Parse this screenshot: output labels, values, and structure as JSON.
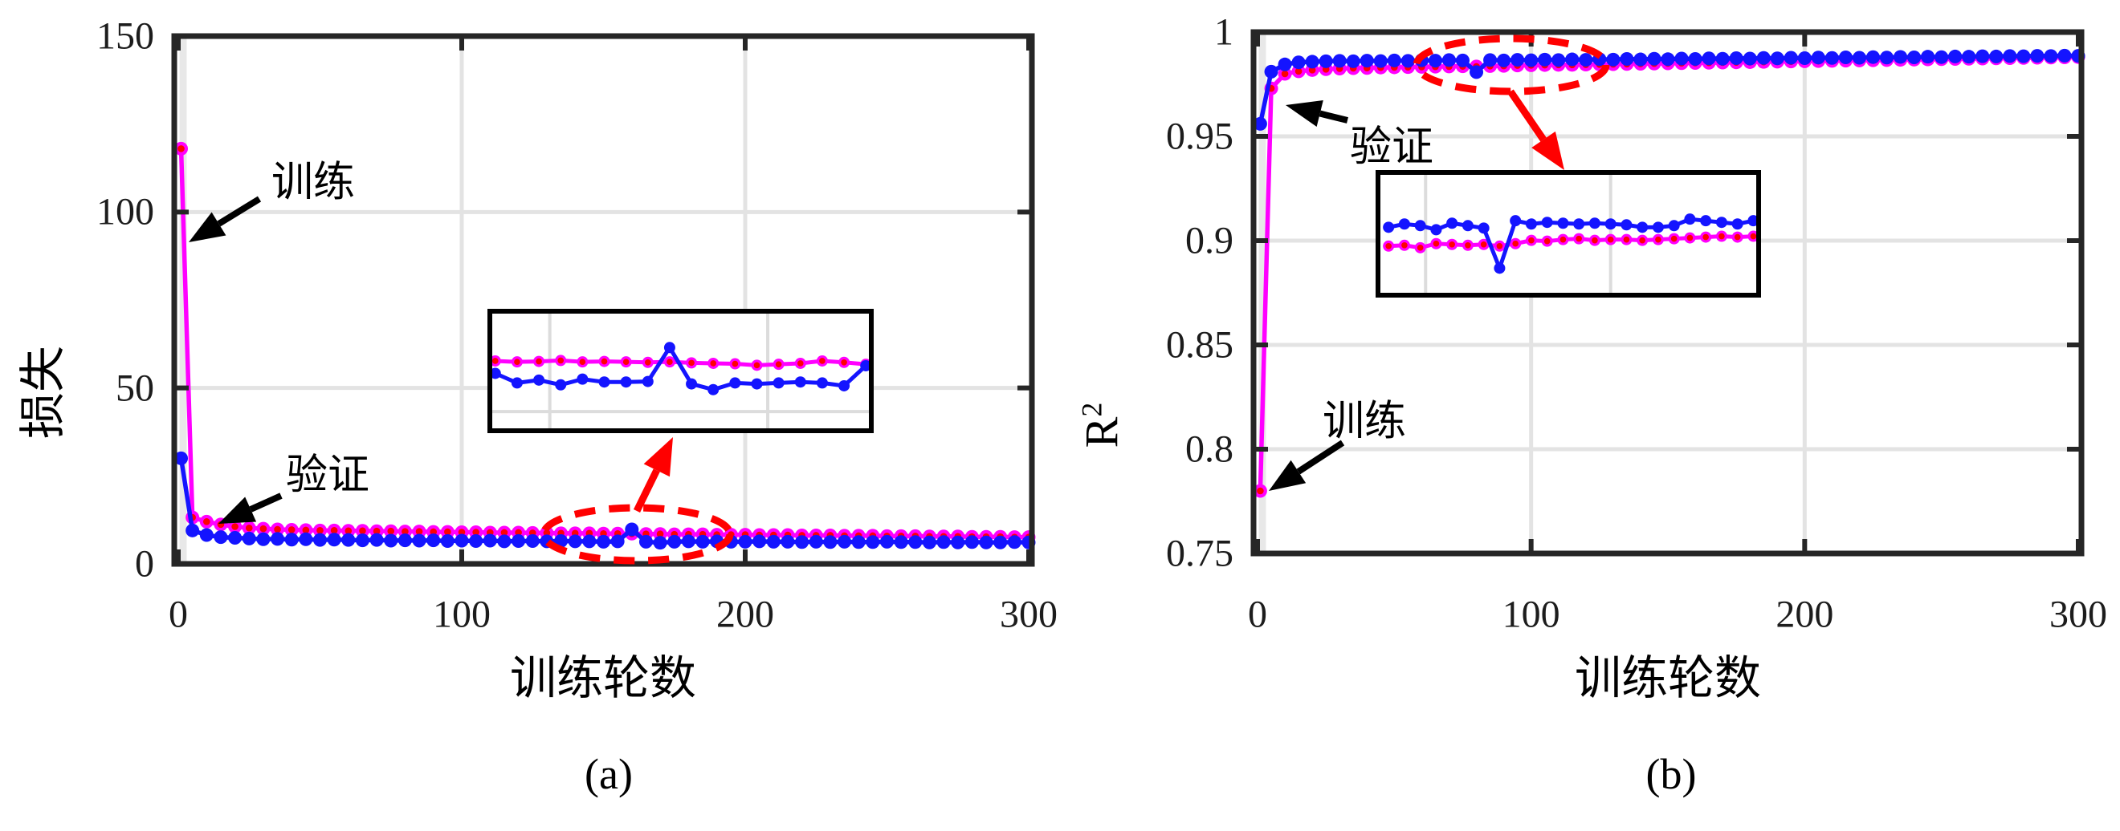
{
  "figure_background": "#FFFFFF",
  "colors": {
    "train_line": "#FF00FF",
    "train_marker_core": "#FF0000",
    "valid_line": "#1414FF",
    "grid": "#E3E3E3",
    "grid_zero_band": "#E8E8E8",
    "frame": "#262626",
    "annotation_red": "#FF0000",
    "annotation_black": "#000000",
    "tick_text": "#1C1C1C"
  },
  "chart_data": [
    {
      "type": "line",
      "id": "loss",
      "caption": "(a)",
      "xlabel": "训练轮数",
      "ylabel": "损失",
      "xlim": [
        0,
        300
      ],
      "ylim": [
        0,
        150
      ],
      "xticks": [
        0,
        100,
        200,
        300
      ],
      "yticks": [
        0,
        50,
        100,
        150
      ],
      "xtick_labels": [
        "0",
        "100",
        "200",
        "300"
      ],
      "ytick_labels": [
        "0",
        "50",
        "100",
        "150"
      ],
      "grid": "on",
      "legend_position": "none",
      "x": [
        1,
        5,
        10,
        15,
        20,
        25,
        30,
        35,
        40,
        45,
        50,
        55,
        60,
        65,
        70,
        75,
        80,
        85,
        90,
        95,
        100,
        105,
        110,
        115,
        120,
        125,
        130,
        135,
        140,
        145,
        150,
        155,
        160,
        165,
        170,
        175,
        180,
        185,
        190,
        195,
        200,
        205,
        210,
        215,
        220,
        225,
        230,
        235,
        240,
        245,
        250,
        255,
        260,
        265,
        270,
        275,
        280,
        285,
        290,
        295,
        300
      ],
      "series": [
        {
          "name": "训练",
          "key": "train",
          "values": [
            118,
            13.2,
            12.0,
            11.2,
            10.6,
            10.2,
            10.0,
            9.8,
            9.7,
            9.6,
            9.5,
            9.5,
            9.4,
            9.4,
            9.3,
            9.3,
            9.2,
            9.2,
            9.1,
            9.1,
            9.0,
            9.0,
            8.9,
            8.9,
            8.9,
            8.8,
            8.8,
            8.7,
            8.7,
            8.7,
            8.6,
            8.6,
            8.6,
            8.5,
            8.5,
            8.4,
            8.4,
            8.4,
            8.3,
            8.3,
            8.3,
            8.2,
            8.2,
            8.2,
            8.1,
            8.1,
            8.1,
            8.0,
            8.0,
            8.0,
            7.9,
            7.9,
            7.9,
            7.8,
            7.8,
            7.8,
            7.7,
            7.7,
            7.7,
            7.6,
            7.6
          ]
        },
        {
          "name": "验证",
          "key": "valid",
          "values": [
            30,
            9.5,
            8.2,
            7.6,
            7.4,
            7.2,
            7.0,
            7.1,
            6.9,
            7.0,
            6.8,
            6.9,
            6.8,
            6.7,
            6.8,
            6.6,
            6.7,
            6.6,
            6.7,
            6.5,
            6.6,
            6.5,
            6.6,
            6.4,
            6.5,
            6.5,
            6.4,
            6.5,
            6.4,
            6.4,
            6.3,
            6.4,
            9.8,
            6.3,
            6.0,
            6.3,
            6.4,
            6.3,
            6.4,
            6.3,
            6.3,
            6.4,
            6.3,
            6.3,
            6.2,
            6.3,
            6.2,
            6.3,
            6.2,
            6.2,
            6.3,
            6.2,
            6.2,
            6.1,
            6.2,
            6.1,
            6.2,
            6.1,
            6.1,
            6.2,
            6.1
          ]
        }
      ],
      "annotations": [
        {
          "text": "训练",
          "points_to": "train-series"
        },
        {
          "text": "验证",
          "points_to": "valid-series"
        }
      ],
      "zoom_inset": {
        "window_x": [
          129,
          199
        ],
        "window_y": [
          2,
          14.5
        ],
        "grid_x": [
          140,
          180
        ],
        "grid_y": [
          4
        ],
        "x": [
          130,
          134,
          138,
          142,
          146,
          150,
          154,
          158,
          162,
          166,
          170,
          174,
          178,
          182,
          186,
          190,
          194,
          198
        ],
        "train": [
          9.3,
          9.2,
          9.25,
          9.35,
          9.2,
          9.25,
          9.2,
          9.15,
          9.2,
          9.1,
          9.05,
          9.0,
          8.85,
          8.95,
          9.05,
          9.3,
          9.15,
          8.95
        ],
        "valid": [
          8.0,
          7.0,
          7.3,
          6.8,
          7.4,
          7.1,
          7.1,
          7.15,
          10.7,
          6.9,
          6.3,
          7.0,
          6.9,
          7.0,
          7.1,
          7.0,
          6.7,
          8.8
        ]
      }
    },
    {
      "type": "line",
      "id": "r2",
      "caption": "(b)",
      "xlabel": "训练轮数",
      "ylabel_base": "R",
      "ylabel_sup": "2",
      "xlim": [
        0,
        300
      ],
      "ylim": [
        0.75,
        1.0
      ],
      "xticks": [
        0,
        100,
        200,
        300
      ],
      "yticks": [
        0.75,
        0.8,
        0.85,
        0.9,
        0.95,
        1.0
      ],
      "xtick_labels": [
        "0",
        "100",
        "200",
        "300"
      ],
      "ytick_labels": [
        "0.75",
        "0.8",
        "0.85",
        "0.9",
        "0.95",
        "1"
      ],
      "grid": "on",
      "legend_position": "none",
      "x": [
        1,
        5,
        10,
        15,
        20,
        25,
        30,
        35,
        40,
        45,
        50,
        55,
        60,
        65,
        70,
        75,
        80,
        85,
        90,
        95,
        100,
        105,
        110,
        115,
        120,
        125,
        130,
        135,
        140,
        145,
        150,
        155,
        160,
        165,
        170,
        175,
        180,
        185,
        190,
        195,
        200,
        205,
        210,
        215,
        220,
        225,
        230,
        235,
        240,
        245,
        250,
        255,
        260,
        265,
        270,
        275,
        280,
        285,
        290,
        295,
        300
      ],
      "series": [
        {
          "name": "训练",
          "key": "train",
          "values": [
            0.78,
            0.973,
            0.98,
            0.9812,
            0.9818,
            0.9822,
            0.9825,
            0.9827,
            0.9828,
            0.983,
            0.9831,
            0.9832,
            0.9833,
            0.9834,
            0.9835,
            0.9836,
            0.9835,
            0.9837,
            0.9838,
            0.984,
            0.9841,
            0.9842,
            0.9843,
            0.9843,
            0.9844,
            0.9845,
            0.9846,
            0.9847,
            0.9848,
            0.9849,
            0.985,
            0.9851,
            0.9852,
            0.9853,
            0.9854,
            0.9855,
            0.9856,
            0.9857,
            0.9858,
            0.9859,
            0.986,
            0.9861,
            0.9862,
            0.9863,
            0.9864,
            0.9865,
            0.9866,
            0.9867,
            0.9868,
            0.9869,
            0.987,
            0.9871,
            0.9872,
            0.9873,
            0.9874,
            0.9875,
            0.9876,
            0.9877,
            0.9878,
            0.9879,
            0.988
          ]
        },
        {
          "name": "验证",
          "key": "valid",
          "values": [
            0.956,
            0.981,
            0.9845,
            0.9855,
            0.9858,
            0.986,
            0.9862,
            0.986,
            0.9863,
            0.9861,
            0.9864,
            0.9862,
            0.9865,
            0.9863,
            0.9866,
            0.9864,
            0.9808,
            0.9866,
            0.9864,
            0.9867,
            0.9865,
            0.9868,
            0.9866,
            0.9869,
            0.9867,
            0.987,
            0.9868,
            0.9871,
            0.9869,
            0.9872,
            0.987,
            0.9873,
            0.9871,
            0.9874,
            0.9872,
            0.9875,
            0.9873,
            0.9876,
            0.9874,
            0.9877,
            0.9875,
            0.9878,
            0.9876,
            0.9879,
            0.9877,
            0.988,
            0.9878,
            0.9881,
            0.9879,
            0.9882,
            0.988,
            0.9883,
            0.9882,
            0.9884,
            0.9883,
            0.9885,
            0.9884,
            0.9886,
            0.9885,
            0.9887,
            0.9886
          ]
        }
      ],
      "annotations": [
        {
          "text": "验证",
          "points_to": "valid-series"
        },
        {
          "text": "训练",
          "points_to": "train-series"
        }
      ],
      "zoom_inset": {
        "window_x": [
          56,
          128
        ],
        "window_y": [
          0.9775,
          0.9925
        ],
        "grid_x": [
          65,
          100
        ],
        "grid_y": [],
        "x": [
          58,
          61,
          64,
          67,
          70,
          73,
          76,
          79,
          82,
          85,
          88,
          91,
          94,
          97,
          100,
          103,
          106,
          109,
          112,
          115,
          118,
          121,
          124,
          127
        ],
        "train": [
          0.9835,
          0.9836,
          0.9833,
          0.9838,
          0.9837,
          0.9836,
          0.9837,
          0.9835,
          0.9838,
          0.9842,
          0.9841,
          0.9843,
          0.9844,
          0.9842,
          0.9843,
          0.9843,
          0.9842,
          0.9843,
          0.9844,
          0.9845,
          0.9846,
          0.9847,
          0.9846,
          0.9847
        ],
        "valid": [
          0.9858,
          0.9862,
          0.986,
          0.9855,
          0.9863,
          0.986,
          0.9857,
          0.9808,
          0.9866,
          0.9862,
          0.9864,
          0.9863,
          0.9862,
          0.9863,
          0.9862,
          0.9861,
          0.9858,
          0.9858,
          0.986,
          0.9868,
          0.9866,
          0.9864,
          0.9862,
          0.9866
        ]
      }
    }
  ]
}
